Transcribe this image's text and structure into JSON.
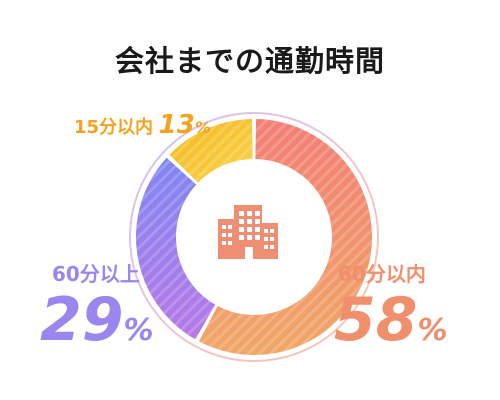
{
  "title": "会社までの通勤時間",
  "colors": {
    "over60": "#f28a6c",
    "over60_b": "#f0a060",
    "60over": "#8b7cf0",
    "60over_b": "#b07ae6",
    "within15": "#f5b31c",
    "within15_b": "#f7d34a",
    "icon": "#ee8e72"
  },
  "icon": "building-icon",
  "chart_data": {
    "type": "pie",
    "variant": "donut",
    "title": "会社までの通勤時間",
    "slices": [
      {
        "label": "60分以内",
        "value": 58,
        "value_text": "58",
        "unit": "%"
      },
      {
        "label": "60分以上",
        "value": 29,
        "value_text": "29",
        "unit": "%"
      },
      {
        "label": "15分以内",
        "value": 13,
        "value_text": "13",
        "unit": "%"
      }
    ]
  }
}
